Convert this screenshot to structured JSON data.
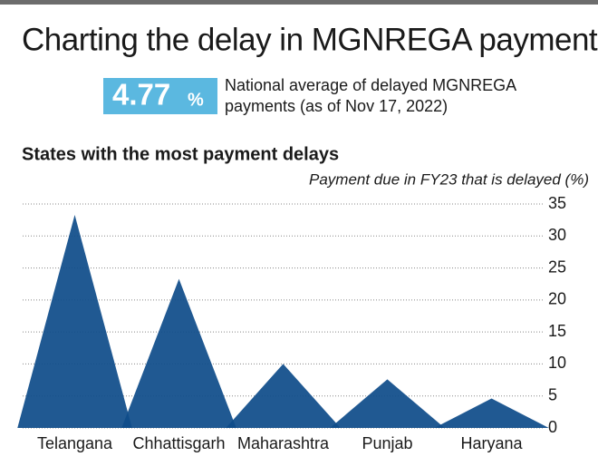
{
  "chart_data": {
    "type": "peak",
    "title": "Charting the delay in MGNREGA payments",
    "highlight": {
      "number": "4.77",
      "suffix": "%"
    },
    "highlight_text": [
      "National average of delayed MGNREGA",
      "payments (as of Nov 17, 2022)"
    ],
    "subtitle": "States with the most payment delays",
    "y_label": "Payment due in FY23 that is delayed (%)",
    "categories": [
      "Telangana",
      "Chhattisgarh",
      "Maharashtra",
      "Punjab",
      "Haryana"
    ],
    "values": [
      33.3,
      23.3,
      10,
      7.6,
      4.6
    ],
    "color": "#0f4c8a",
    "ylim": [
      0,
      35
    ],
    "yticks": [
      0,
      5,
      10,
      15,
      20,
      25,
      30,
      35
    ],
    "grid": true
  }
}
